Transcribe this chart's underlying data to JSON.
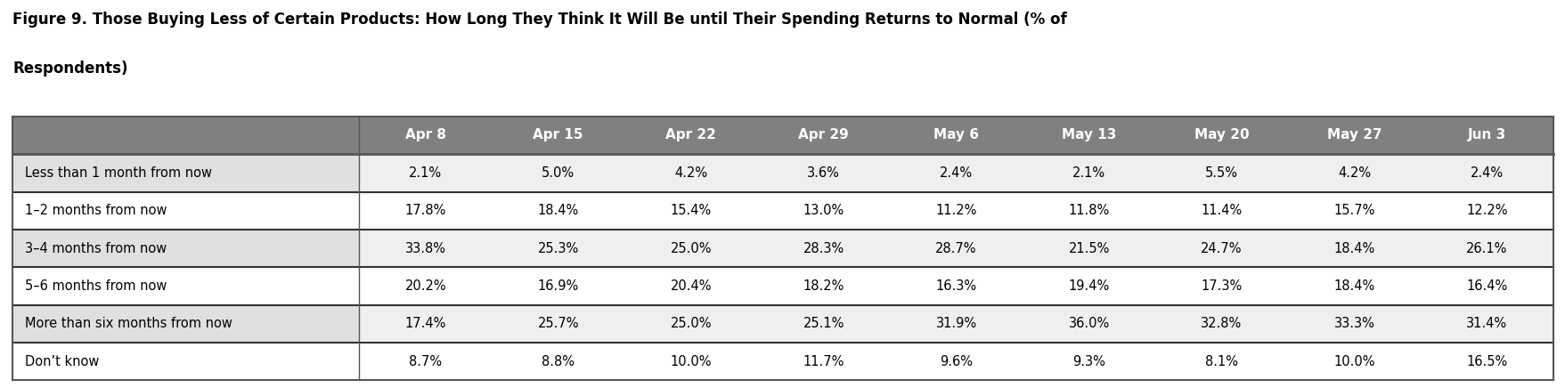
{
  "title_line1": "Figure 9. Those Buying Less of Certain Products: How Long They Think It Will Be until Their Spending Returns to Normal (% of",
  "title_line2": "Respondents)",
  "columns": [
    "Apr 8",
    "Apr 15",
    "Apr 22",
    "Apr 29",
    "May 6",
    "May 13",
    "May 20",
    "May 27",
    "Jun 3"
  ],
  "rows": [
    "Less than 1 month from now",
    "1–2 months from now",
    "3–4 months from now",
    "5–6 months from now",
    "More than six months from now",
    "Don’t know"
  ],
  "values": [
    [
      "2.1%",
      "5.0%",
      "4.2%",
      "3.6%",
      "2.4%",
      "2.1%",
      "5.5%",
      "4.2%",
      "2.4%"
    ],
    [
      "17.8%",
      "18.4%",
      "15.4%",
      "13.0%",
      "11.2%",
      "11.8%",
      "11.4%",
      "15.7%",
      "12.2%"
    ],
    [
      "33.8%",
      "25.3%",
      "25.0%",
      "28.3%",
      "28.7%",
      "21.5%",
      "24.7%",
      "18.4%",
      "26.1%"
    ],
    [
      "20.2%",
      "16.9%",
      "20.4%",
      "18.2%",
      "16.3%",
      "19.4%",
      "17.3%",
      "18.4%",
      "16.4%"
    ],
    [
      "17.4%",
      "25.7%",
      "25.0%",
      "25.1%",
      "31.9%",
      "36.0%",
      "32.8%",
      "33.3%",
      "31.4%"
    ],
    [
      "8.7%",
      "8.8%",
      "10.0%",
      "11.7%",
      "9.6%",
      "9.3%",
      "8.1%",
      "10.0%",
      "16.5%"
    ]
  ],
  "header_bg": "#808080",
  "header_text": "#ffffff",
  "row_bg_light": "#efefef",
  "row_bg_white": "#ffffff",
  "label_col_bg_light": "#e0e0e0",
  "label_col_bg_white": "#f5f5f5",
  "row_text": "#000000",
  "title_color": "#000000",
  "title_fontsize": 12,
  "header_fontsize": 11,
  "cell_fontsize": 10.5,
  "row_label_fontsize": 10.5
}
